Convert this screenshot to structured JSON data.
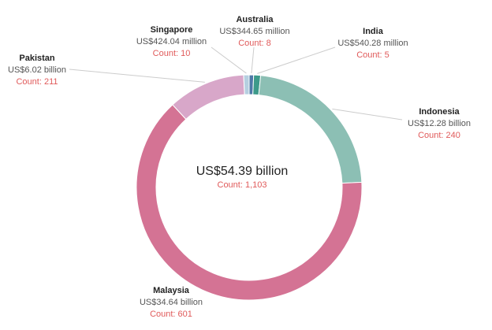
{
  "center": {
    "total": "US$54.39 billion",
    "count": "Count: 1,103"
  },
  "count_color": "#e05a5a",
  "chart_data": {
    "type": "pie",
    "donut": true,
    "slices": [
      {
        "name": "Australia",
        "amount": "US$344.65 million",
        "value_usd_billion": 0.34465,
        "count": "Count: 8",
        "color": "#4e79a7"
      },
      {
        "name": "India",
        "amount": "US$540.28 million",
        "value_usd_billion": 0.54028,
        "count": "Count: 5",
        "color": "#3d9a8a"
      },
      {
        "name": "Indonesia",
        "amount": "US$12.28 billion",
        "value_usd_billion": 12.28,
        "count": "Count: 240",
        "color": "#8cbfb4"
      },
      {
        "name": "Malaysia",
        "amount": "US$34.64 billion",
        "value_usd_billion": 34.64,
        "count": "Count: 601",
        "color": "#d47394"
      },
      {
        "name": "Pakistan",
        "amount": "US$6.02 billion",
        "value_usd_billion": 6.02,
        "count": "Count: 211",
        "color": "#d8a7c9"
      },
      {
        "name": "Singapore",
        "amount": "US$424.04 million",
        "value_usd_billion": 0.42404,
        "count": "Count: 10",
        "color": "#b5cfe0"
      }
    ]
  }
}
